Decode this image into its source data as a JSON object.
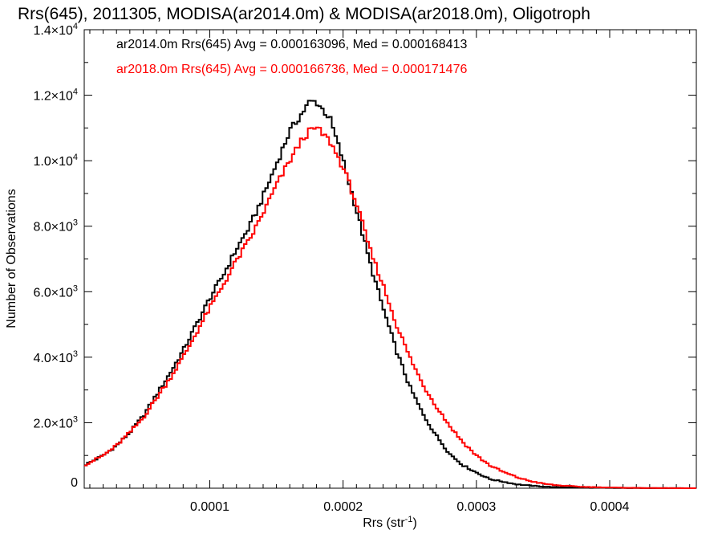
{
  "chart_data": {
    "type": "line",
    "title": "Rrs(645), 2011305, MODISA(ar2014.0m) & MODISA(ar2018.0m), Oligotroph",
    "xlabel": "Rrs (str",
    "xlabel_sup": "-1",
    "xlabel_close": ")",
    "ylabel": "Number of Observations",
    "xlim": [
      5.8e-06,
      0.000465
    ],
    "ylim": [
      0,
      14000
    ],
    "x_ticks": [
      {
        "value": 0.0001,
        "label": "0.0001"
      },
      {
        "value": 0.0002,
        "label": "0.0002"
      },
      {
        "value": 0.0003,
        "label": "0.0003"
      },
      {
        "value": 0.0004,
        "label": "0.0004"
      }
    ],
    "y_ticks": [
      {
        "value": 0,
        "mant": "0",
        "exp": ""
      },
      {
        "value": 2000,
        "mant": "2.0×10",
        "exp": "3"
      },
      {
        "value": 4000,
        "mant": "4.0×10",
        "exp": "3"
      },
      {
        "value": 6000,
        "mant": "6.0×10",
        "exp": "3"
      },
      {
        "value": 8000,
        "mant": "8.0×10",
        "exp": "3"
      },
      {
        "value": 10000,
        "mant": "1.0×10",
        "exp": "4"
      },
      {
        "value": 12000,
        "mant": "1.2×10",
        "exp": "4"
      },
      {
        "value": 14000,
        "mant": "1.4×10",
        "exp": "4"
      }
    ],
    "legend_entries": [
      "ar2014.0m Rrs(645) Avg = 0.000163096, Med = 0.000168413",
      "ar2018.0m Rrs(645) Avg = 0.000166736, Med = 0.000171476"
    ],
    "legend_placement": "top-left",
    "grid": false,
    "series": [
      {
        "color": "#000000",
        "x": [
          5.8e-06,
          2e-05,
          3e-05,
          4e-05,
          5e-05,
          6e-05,
          7e-05,
          8e-05,
          9e-05,
          0.0001,
          0.00011,
          0.00012,
          0.00013,
          0.00014,
          0.00015,
          0.00016,
          0.00017,
          0.000175,
          0.00018,
          0.00019,
          0.0002,
          0.00021,
          0.00022,
          0.00023,
          0.00024,
          0.00025,
          0.00026,
          0.00027,
          0.00028,
          0.00029,
          0.0003,
          0.00031,
          0.00032,
          0.00033,
          0.00034,
          0.00035,
          0.00036,
          0.00038,
          0.0004,
          0.00042,
          0.00044,
          0.000465
        ],
        "y": [
          700,
          1000,
          1300,
          1700,
          2200,
          2850,
          3500,
          4200,
          5000,
          5800,
          6500,
          7300,
          8000,
          8900,
          9900,
          10900,
          11500,
          11800,
          11800,
          11300,
          10000,
          8500,
          6900,
          5500,
          4200,
          3100,
          2250,
          1600,
          1050,
          700,
          480,
          280,
          200,
          120,
          80,
          50,
          30,
          15,
          8,
          4,
          2,
          0
        ]
      },
      {
        "color": "#ff0000",
        "x": [
          5.8e-06,
          2e-05,
          3e-05,
          4e-05,
          5e-05,
          6e-05,
          7e-05,
          8e-05,
          9e-05,
          0.0001,
          0.00011,
          0.00012,
          0.00013,
          0.00014,
          0.00015,
          0.00016,
          0.00017,
          0.000175,
          0.00018,
          0.00019,
          0.0002,
          0.00021,
          0.00022,
          0.00023,
          0.00024,
          0.00025,
          0.00026,
          0.00027,
          0.00028,
          0.00029,
          0.0003,
          0.00031,
          0.00032,
          0.00033,
          0.00034,
          0.00035,
          0.00036,
          0.00038,
          0.0004,
          0.00042,
          0.00044,
          0.000465
        ],
        "y": [
          700,
          1000,
          1300,
          1700,
          2150,
          2750,
          3350,
          4000,
          4750,
          5500,
          6200,
          6950,
          7600,
          8400,
          9250,
          10000,
          10700,
          10900,
          11000,
          10600,
          9800,
          8700,
          7300,
          6200,
          5000,
          4000,
          3150,
          2500,
          1900,
          1400,
          1000,
          700,
          500,
          340,
          220,
          140,
          90,
          40,
          20,
          8,
          3,
          0
        ]
      }
    ]
  }
}
